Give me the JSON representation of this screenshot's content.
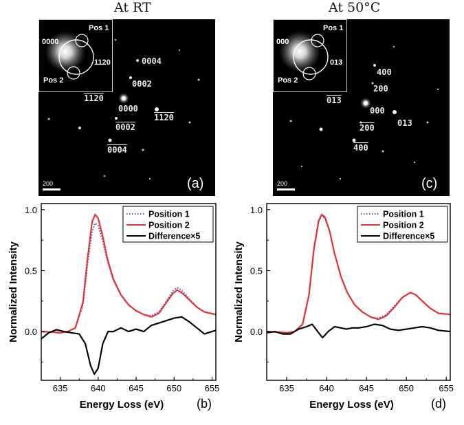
{
  "titles": {
    "left": "At RT",
    "right": "At 50°C"
  },
  "diffraction": {
    "a": {
      "letter": "(a)",
      "scale": "200",
      "inset_labels": [
        "0000",
        "Pos 1",
        "1120",
        "Pos 2"
      ],
      "spots": [
        "0004",
        "0002",
        "0000",
        "1120",
        "1120",
        "0002",
        "0004"
      ]
    },
    "c": {
      "letter": "(c)",
      "scale": "200",
      "inset_labels": [
        "000",
        "Pos 1",
        "013",
        "Pos 2"
      ],
      "spots": [
        "400",
        "200",
        "013",
        "000",
        "013",
        "200",
        "400"
      ]
    }
  },
  "chart_data": [
    {
      "type": "line",
      "panel": "(b)",
      "xlabel": "Energy Loss (eV)",
      "ylabel": "Normalized Intensity",
      "xlim": [
        632.5,
        655.5
      ],
      "ylim": [
        -0.4,
        1.05
      ],
      "xticks": [
        "635",
        "640",
        "645",
        "650",
        "655"
      ],
      "yticks": [
        "0.0",
        "0.5",
        "1.0"
      ],
      "legend_position": "top-right",
      "series": [
        {
          "name": "Position 1",
          "color": "#3355cc",
          "style": "dotted",
          "x": [
            632.5,
            634,
            635,
            636,
            637,
            638,
            638.6,
            639.2,
            639.6,
            640.0,
            640.6,
            641.2,
            642,
            643,
            644,
            645,
            646,
            647,
            648,
            649,
            649.8,
            650.4,
            651,
            652,
            653,
            654,
            655.5
          ],
          "y": [
            0.0,
            -0.005,
            -0.01,
            0.0,
            0.03,
            0.22,
            0.55,
            0.82,
            0.89,
            0.87,
            0.74,
            0.58,
            0.42,
            0.3,
            0.22,
            0.17,
            0.14,
            0.13,
            0.16,
            0.25,
            0.33,
            0.36,
            0.34,
            0.27,
            0.2,
            0.16,
            0.14
          ]
        },
        {
          "name": "Position 2",
          "color": "#e83030",
          "style": "solid",
          "x": [
            632.5,
            634,
            635,
            636,
            637,
            638,
            638.6,
            639.2,
            639.6,
            640.0,
            640.6,
            641.2,
            642,
            643,
            644,
            645,
            646,
            647,
            648,
            649,
            649.8,
            650.4,
            651,
            652,
            653,
            654,
            655.5
          ],
          "y": [
            0.0,
            -0.005,
            -0.01,
            0.0,
            0.03,
            0.24,
            0.6,
            0.9,
            0.96,
            0.93,
            0.78,
            0.6,
            0.43,
            0.3,
            0.22,
            0.17,
            0.14,
            0.12,
            0.15,
            0.24,
            0.31,
            0.34,
            0.32,
            0.26,
            0.2,
            0.16,
            0.14
          ]
        },
        {
          "name": "Difference×5",
          "color": "#000000",
          "style": "solid",
          "x": [
            632.5,
            633.5,
            634.5,
            635.5,
            636.5,
            637.5,
            638.3,
            639.0,
            639.5,
            640.0,
            640.6,
            641.3,
            642,
            643,
            644,
            645,
            646,
            647,
            648,
            649,
            650,
            651,
            652,
            653,
            654,
            655.5
          ],
          "y": [
            -0.06,
            -0.01,
            0.015,
            0.0,
            -0.01,
            -0.02,
            -0.1,
            -0.28,
            -0.35,
            -0.3,
            -0.1,
            0.0,
            0.0,
            0.03,
            0.0,
            0.02,
            0.0,
            0.05,
            0.07,
            0.09,
            0.11,
            0.12,
            0.08,
            0.03,
            -0.02,
            0.01
          ]
        }
      ]
    },
    {
      "type": "line",
      "panel": "(d)",
      "xlabel": "Energy Loss (eV)",
      "ylabel": "Normalized Intensity",
      "xlim": [
        632.5,
        655.5
      ],
      "ylim": [
        -0.4,
        1.05
      ],
      "xticks": [
        "635",
        "640",
        "645",
        "650",
        "655"
      ],
      "yticks": [
        "0.0",
        "0.5",
        "1.0"
      ],
      "legend_position": "top-right",
      "series": [
        {
          "name": "Position 1",
          "color": "#3355cc",
          "style": "dotted",
          "x": [
            632.5,
            634,
            635,
            636,
            637,
            637.8,
            638.4,
            639.0,
            639.4,
            639.8,
            640.4,
            641,
            641.8,
            642.6,
            643.5,
            644.5,
            645.5,
            646.5,
            647.5,
            648.5,
            649.5,
            650.5,
            651.2,
            652,
            653,
            654,
            655.5
          ],
          "y": [
            0.0,
            -0.005,
            -0.01,
            0.0,
            0.06,
            0.3,
            0.66,
            0.9,
            0.95,
            0.93,
            0.82,
            0.64,
            0.45,
            0.32,
            0.22,
            0.16,
            0.12,
            0.11,
            0.14,
            0.21,
            0.28,
            0.32,
            0.3,
            0.25,
            0.19,
            0.15,
            0.14
          ]
        },
        {
          "name": "Position 2",
          "color": "#e83030",
          "style": "solid",
          "x": [
            632.5,
            634,
            635,
            636,
            637,
            637.8,
            638.4,
            639.0,
            639.4,
            639.8,
            640.4,
            641,
            641.8,
            642.6,
            643.5,
            644.5,
            645.5,
            646.5,
            647.5,
            648.5,
            649.5,
            650.5,
            651.2,
            652,
            653,
            654,
            655.5
          ],
          "y": [
            0.0,
            -0.005,
            -0.01,
            0.0,
            0.06,
            0.3,
            0.67,
            0.91,
            0.96,
            0.94,
            0.82,
            0.64,
            0.45,
            0.32,
            0.22,
            0.16,
            0.12,
            0.1,
            0.13,
            0.2,
            0.28,
            0.32,
            0.3,
            0.25,
            0.19,
            0.15,
            0.14
          ]
        },
        {
          "name": "Difference×5",
          "color": "#000000",
          "style": "solid",
          "x": [
            632.5,
            633.5,
            634.5,
            635.5,
            636.5,
            637.5,
            638.2,
            639.0,
            639.5,
            640.2,
            641,
            641.8,
            642.5,
            643.2,
            644,
            645,
            646,
            647,
            648,
            649,
            650,
            651,
            652,
            653,
            654,
            655.5
          ],
          "y": [
            -0.01,
            0.0,
            -0.02,
            -0.02,
            0.02,
            0.04,
            0.06,
            -0.01,
            -0.05,
            0.0,
            0.04,
            0.03,
            0.02,
            0.03,
            0.03,
            0.04,
            0.06,
            0.05,
            0.02,
            0.01,
            0.02,
            0.03,
            0.04,
            0.03,
            0.01,
            0.0
          ]
        }
      ]
    }
  ]
}
